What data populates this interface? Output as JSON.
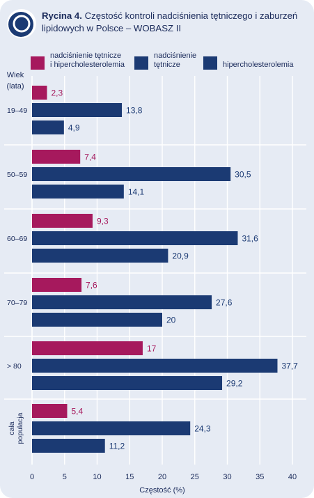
{
  "title": {
    "prefix": "Rycina 4.",
    "text": "Częstość kontroli nadciśnienia tętniczego i zaburzeń lipidowych w Polsce – WOBASZ II"
  },
  "colors": {
    "magenta": "#a6195d",
    "navy": "#1b3a73",
    "grid": "#ffffff",
    "background": "#e6ebf4",
    "text": "#1a2a5a"
  },
  "chart_data": {
    "type": "bar",
    "orientation": "horizontal",
    "title": "Rycina 4. Częstość kontroli nadciśnienia tętniczego i zaburzeń lipidowych w Polsce – WOBASZ II",
    "ylabel": "Wiek (lata)",
    "xlabel": "Częstość (%)",
    "xlim": [
      0,
      40
    ],
    "xticks": [
      0,
      5,
      10,
      15,
      20,
      25,
      30,
      35,
      40
    ],
    "grid": true,
    "legend_position": "top",
    "categories": [
      "19–49",
      "50–59",
      "60–69",
      "70–79",
      "> 80",
      "cała populacja"
    ],
    "series": [
      {
        "name": "nadciśnienie tętnicze i hipercholesterolemia",
        "color": "#a6195d",
        "values": [
          2.3,
          7.4,
          9.3,
          7.6,
          17,
          5.4
        ],
        "labels": [
          "2,3",
          "7,4",
          "9,3",
          "7,6",
          "17",
          "5,4"
        ]
      },
      {
        "name": "nadciśnienie tętnicze",
        "color": "#1b3a73",
        "values": [
          13.8,
          30.5,
          31.6,
          27.6,
          37.7,
          24.3
        ],
        "labels": [
          "13,8",
          "30,5",
          "31,6",
          "27,6",
          "37,7",
          "24,3"
        ]
      },
      {
        "name": "hipercholesterolemia",
        "color": "#1b3a73",
        "values": [
          4.9,
          14.1,
          20.9,
          20,
          29.2,
          11.2
        ],
        "labels": [
          "4,9",
          "14,1",
          "20,9",
          "20",
          "29,2",
          "11,2"
        ]
      }
    ]
  },
  "legend": [
    {
      "line1": "nadciśnienie tętnicze",
      "line2": "i hipercholesterolemia",
      "color": "#a6195d"
    },
    {
      "line1": "nadciśnienie",
      "line2": "tętnicze",
      "color": "#1b3a73"
    },
    {
      "line1": "hipercholesterolemia",
      "line2": "",
      "color": "#1b3a73"
    }
  ],
  "axis": {
    "y_title_line1": "Wiek",
    "y_title_line2": "(lata)",
    "x_title": "Częstość (%)"
  }
}
